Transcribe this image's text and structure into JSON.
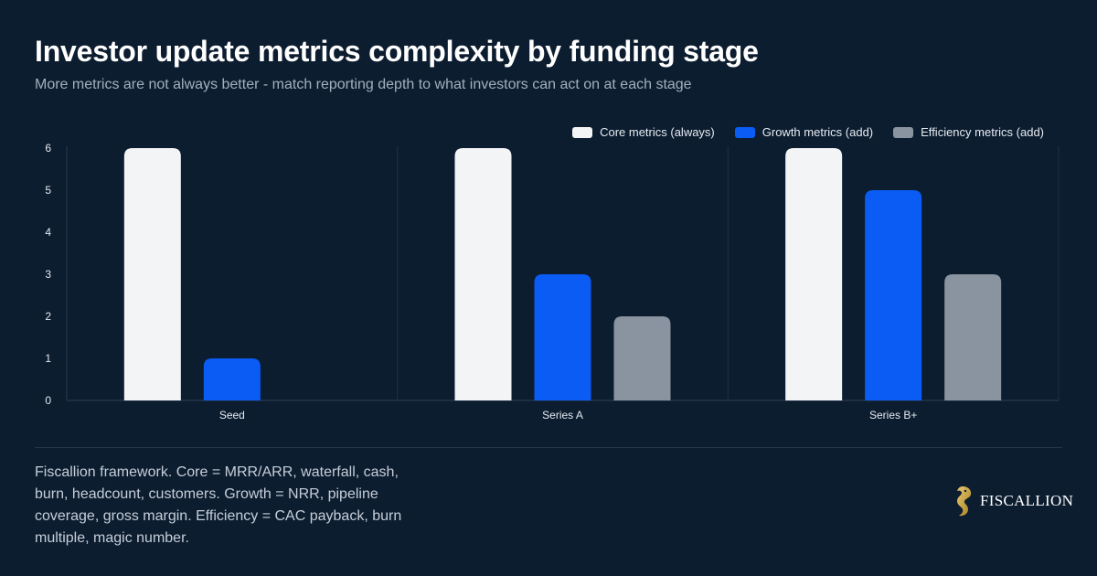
{
  "title": "Investor update metrics complexity by funding stage",
  "subtitle": "More metrics are not always better - match reporting depth to what investors can act on at each stage",
  "footnote": "Fiscallion framework. Core = MRR/ARR, waterfall, cash, burn, headcount, customers. Growth = NRR, pipeline coverage, gross margin. Efficiency = CAC payback, burn multiple, magic number.",
  "brand": {
    "name": "FISCALLION",
    "icon": "seahorse-logo-icon",
    "accent": "#c9a44c"
  },
  "colors": {
    "background": "#0c1d30",
    "core": "#f3f4f6",
    "growth": "#0b5cf5",
    "efficiency": "#8a93a0"
  },
  "chart_data": {
    "type": "bar",
    "categories": [
      "Seed",
      "Series A",
      "Series B+"
    ],
    "series": [
      {
        "name": "Core metrics (always)",
        "values": [
          6,
          6,
          6
        ],
        "color": "#f3f4f6"
      },
      {
        "name": "Growth metrics (add)",
        "values": [
          1,
          3,
          5
        ],
        "color": "#0b5cf5"
      },
      {
        "name": "Efficiency metrics (add)",
        "values": [
          0,
          2,
          3
        ],
        "color": "#8a93a0"
      }
    ],
    "ylim": [
      0,
      6
    ],
    "yticks": [
      0,
      1,
      2,
      3,
      4,
      5,
      6
    ],
    "grid": "vertical separators between categories",
    "legend": "top-right"
  }
}
